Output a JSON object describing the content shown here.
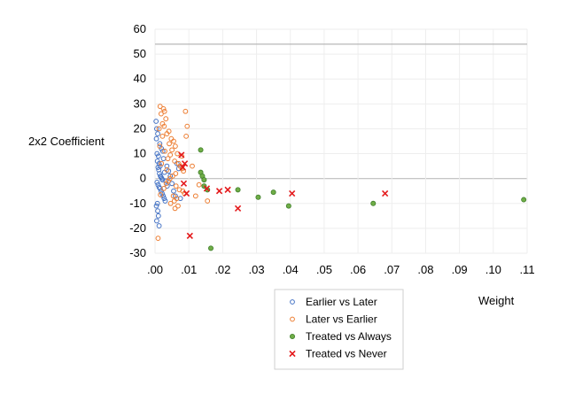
{
  "chart_data": {
    "type": "scatter",
    "title": "",
    "xlabel": "Weight",
    "ylabel": "2x2 Coefficient",
    "xlim": [
      0,
      0.11
    ],
    "ylim": [
      -30,
      60
    ],
    "x_ticks": [
      ".00",
      ".01",
      ".02",
      ".03",
      ".04",
      ".05",
      ".06",
      ".07",
      ".08",
      ".09",
      ".10",
      ".11"
    ],
    "y_ticks": [
      "-30",
      "-20",
      "-10",
      "0",
      "10",
      "20",
      "30",
      "40",
      "50",
      "60"
    ],
    "grid": true,
    "reference_line_y": 54,
    "legend_position": "bottom-center",
    "series": [
      {
        "name": "Earlier vs Later",
        "marker": "circle-open",
        "color": "#4472C4",
        "points": [
          [
            0.0003,
            23
          ],
          [
            0.0005,
            20
          ],
          [
            0.0008,
            18
          ],
          [
            0.0004,
            16
          ],
          [
            0.0006,
            10
          ],
          [
            0.001,
            9
          ],
          [
            0.0007,
            7
          ],
          [
            0.0012,
            6
          ],
          [
            0.0015,
            5
          ],
          [
            0.0009,
            4.5
          ],
          [
            0.0011,
            3.5
          ],
          [
            0.0013,
            2
          ],
          [
            0.0016,
            1
          ],
          [
            0.0018,
            0.5
          ],
          [
            0.002,
            0
          ],
          [
            0.0022,
            -0.5
          ],
          [
            0.0006,
            -1.5
          ],
          [
            0.0009,
            -2.5
          ],
          [
            0.0012,
            -3.5
          ],
          [
            0.0015,
            -4
          ],
          [
            0.0018,
            -5
          ],
          [
            0.0021,
            -6
          ],
          [
            0.0024,
            -7
          ],
          [
            0.0027,
            -8
          ],
          [
            0.003,
            -9
          ],
          [
            0.0007,
            -10
          ],
          [
            0.0004,
            -11
          ],
          [
            0.0008,
            -13
          ],
          [
            0.001,
            -15
          ],
          [
            0.0005,
            -17
          ],
          [
            0.0012,
            -19
          ],
          [
            0.0035,
            5
          ],
          [
            0.004,
            3
          ],
          [
            0.0045,
            1
          ],
          [
            0.005,
            -2
          ],
          [
            0.0055,
            -5
          ],
          [
            0.006,
            -7
          ],
          [
            0.0065,
            6
          ],
          [
            0.007,
            4
          ],
          [
            0.0075,
            -8
          ],
          [
            0.0025,
            8
          ],
          [
            0.0028,
            2.5
          ],
          [
            0.0032,
            -1
          ],
          [
            0.0036,
            -3
          ],
          [
            0.0019,
            12
          ],
          [
            0.0014,
            14
          ],
          [
            0.0023,
            11
          ]
        ]
      },
      {
        "name": "Later vs Earlier",
        "marker": "circle-open",
        "color": "#ED7D31",
        "points": [
          [
            0.0015,
            29
          ],
          [
            0.0025,
            28
          ],
          [
            0.0028,
            27
          ],
          [
            0.0018,
            26
          ],
          [
            0.0032,
            24
          ],
          [
            0.0022,
            22
          ],
          [
            0.0027,
            21
          ],
          [
            0.0012,
            20
          ],
          [
            0.0035,
            18
          ],
          [
            0.0048,
            16
          ],
          [
            0.0055,
            15
          ],
          [
            0.0042,
            14
          ],
          [
            0.006,
            13
          ],
          [
            0.005,
            11.5
          ],
          [
            0.0066,
            10
          ],
          [
            0.0045,
            9.5
          ],
          [
            0.0038,
            8
          ],
          [
            0.0058,
            7
          ],
          [
            0.007,
            6
          ],
          [
            0.0074,
            5
          ],
          [
            0.008,
            4
          ],
          [
            0.0084,
            3
          ],
          [
            0.0061,
            2
          ],
          [
            0.0052,
            1
          ],
          [
            0.0044,
            0
          ],
          [
            0.0039,
            -1
          ],
          [
            0.0033,
            -2
          ],
          [
            0.0062,
            -3
          ],
          [
            0.0072,
            -4.5
          ],
          [
            0.0082,
            -5
          ],
          [
            0.0087,
            -6
          ],
          [
            0.0054,
            -7
          ],
          [
            0.0064,
            -8
          ],
          [
            0.0057,
            -9
          ],
          [
            0.0046,
            -10
          ],
          [
            0.0068,
            -11
          ],
          [
            0.0059,
            -12
          ],
          [
            0.0009,
            -24
          ],
          [
            0.009,
            27
          ],
          [
            0.0095,
            21
          ],
          [
            0.0092,
            17
          ],
          [
            0.011,
            5
          ],
          [
            0.012,
            -7
          ],
          [
            0.0155,
            -9
          ],
          [
            0.013,
            -2.5
          ],
          [
            0.0022,
            17
          ],
          [
            0.0041,
            19
          ],
          [
            0.0079,
            9
          ],
          [
            0.0014,
            13
          ],
          [
            0.0029,
            11
          ],
          [
            0.0019,
            6
          ],
          [
            0.0035,
            3.5
          ],
          [
            0.0026,
            -4
          ],
          [
            0.0016,
            -6.5
          ]
        ]
      },
      {
        "name": "Treated vs Always",
        "marker": "circle-filled",
        "color": "#70AD47",
        "points": [
          [
            0.0135,
            11.5
          ],
          [
            0.0135,
            2.5
          ],
          [
            0.014,
            1
          ],
          [
            0.0145,
            -0.5
          ],
          [
            0.0145,
            -3
          ],
          [
            0.0155,
            -4.5
          ],
          [
            0.0245,
            -4.5
          ],
          [
            0.0305,
            -7.5
          ],
          [
            0.035,
            -5.5
          ],
          [
            0.0395,
            -11
          ],
          [
            0.0645,
            -10
          ],
          [
            0.109,
            -8.5
          ],
          [
            0.0165,
            -28
          ]
        ]
      },
      {
        "name": "Treated vs Never",
        "marker": "x",
        "color": "#E41A1C",
        "points": [
          [
            0.0078,
            9.5
          ],
          [
            0.0088,
            6
          ],
          [
            0.0085,
            -2
          ],
          [
            0.0093,
            -6
          ],
          [
            0.0153,
            -4
          ],
          [
            0.019,
            -5
          ],
          [
            0.0215,
            -4.5
          ],
          [
            0.0245,
            -12
          ],
          [
            0.0405,
            -6
          ],
          [
            0.068,
            -6
          ],
          [
            0.0103,
            -23
          ],
          [
            0.0082,
            4.5
          ]
        ]
      }
    ]
  }
}
